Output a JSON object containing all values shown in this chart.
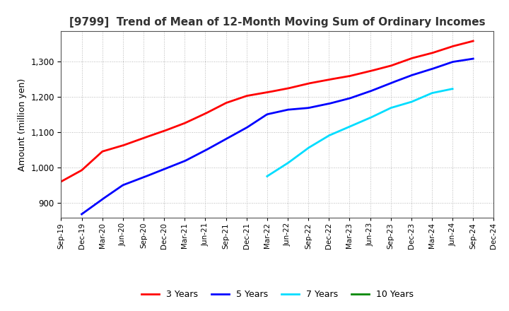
{
  "title": "[9799]  Trend of Mean of 12-Month Moving Sum of Ordinary Incomes",
  "ylabel": "Amount (million yen)",
  "background_color": "#ffffff",
  "grid_color": "#888888",
  "x_tick_labels": [
    "Sep-19",
    "Dec-19",
    "Mar-20",
    "Jun-20",
    "Sep-20",
    "Dec-20",
    "Mar-21",
    "Jun-21",
    "Sep-21",
    "Dec-21",
    "Mar-22",
    "Jun-22",
    "Sep-22",
    "Dec-22",
    "Mar-23",
    "Jun-23",
    "Sep-23",
    "Dec-23",
    "Mar-24",
    "Jun-24",
    "Sep-24",
    "Dec-24"
  ],
  "ylim": [
    858,
    1385
  ],
  "yticks": [
    900,
    1000,
    1100,
    1200,
    1300
  ],
  "series_3yr": {
    "color": "#ff0000",
    "xp": [
      0,
      1,
      2,
      3,
      4,
      5,
      6,
      7,
      8,
      9,
      10,
      11,
      12,
      13,
      14,
      15,
      16,
      17,
      18,
      19,
      20
    ],
    "yp": [
      960,
      992,
      1045,
      1062,
      1083,
      1103,
      1125,
      1152,
      1182,
      1202,
      1212,
      1223,
      1237,
      1248,
      1258,
      1272,
      1287,
      1308,
      1323,
      1342,
      1357
    ]
  },
  "series_5yr": {
    "color": "#0000ff",
    "xp": [
      1,
      2,
      3,
      4,
      5,
      6,
      7,
      8,
      9,
      10,
      11,
      12,
      13,
      14,
      15,
      16,
      17,
      18,
      19,
      20
    ],
    "yp": [
      868,
      910,
      950,
      972,
      995,
      1018,
      1048,
      1080,
      1112,
      1150,
      1163,
      1168,
      1180,
      1195,
      1215,
      1238,
      1260,
      1278,
      1298,
      1307
    ]
  },
  "series_7yr": {
    "color": "#00ddff",
    "xp": [
      10,
      11,
      12,
      13,
      14,
      15,
      16,
      17,
      18,
      19
    ],
    "yp": [
      975,
      1012,
      1055,
      1090,
      1115,
      1140,
      1168,
      1185,
      1210,
      1222
    ]
  },
  "series_10yr": {
    "color": "#008800",
    "xp": [],
    "yp": []
  },
  "legend_labels": [
    "3 Years",
    "5 Years",
    "7 Years",
    "10 Years"
  ],
  "legend_colors": [
    "#ff0000",
    "#0000ff",
    "#00ddff",
    "#008800"
  ]
}
